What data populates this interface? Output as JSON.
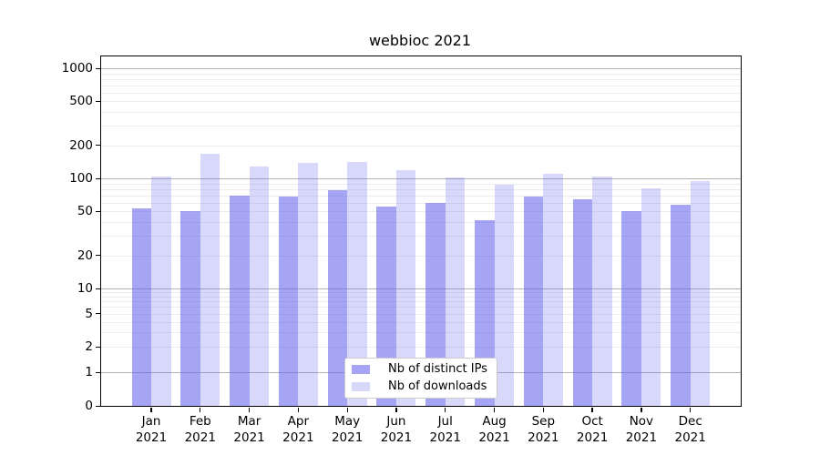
{
  "figure": {
    "title": "webbioc 2021"
  },
  "chart_data": {
    "type": "bar",
    "title": "webbioc 2021",
    "x_tick_labels": [
      "Jan 2021",
      "Feb 2021",
      "Mar 2021",
      "Apr 2021",
      "May 2021",
      "Jun 2021",
      "Jul 2021",
      "Aug 2021",
      "Sep 2021",
      "Oct 2021",
      "Nov 2021",
      "Dec 2021"
    ],
    "series": [
      {
        "name": "Nb of distinct IPs",
        "color": "rgba(100,100,235,0.58)",
        "values": [
          53,
          50,
          69,
          68,
          78,
          55,
          60,
          42,
          68,
          64,
          50,
          58
        ]
      },
      {
        "name": "Nb of downloads",
        "color": "rgba(100,100,235,0.25)",
        "values": [
          104,
          166,
          127,
          138,
          140,
          119,
          102,
          87,
          109,
          103,
          81,
          95
        ]
      }
    ],
    "y_axis": {
      "scale": "log-with-zero",
      "ticks": [
        0,
        1,
        2,
        5,
        10,
        20,
        50,
        100,
        200,
        500,
        1000
      ],
      "major_ticks": [
        1,
        10,
        100,
        1000
      ],
      "range": [
        0,
        1400
      ]
    },
    "x_axis": {
      "label": "",
      "tick_rotation": 0
    },
    "grid": true,
    "legend": {
      "position": "lower-center",
      "items": [
        "Nb of distinct IPs",
        "Nb of downloads"
      ]
    }
  },
  "colors": {
    "background": "#ffffff",
    "bar_dark": "rgba(100,100,235,0.58)",
    "bar_light": "rgba(100,100,235,0.25)",
    "grid_major": "#b3b3b3",
    "grid_minor": "#ececec",
    "axis": "#000000",
    "legend_border": "#cccccc",
    "text": "#000000"
  }
}
